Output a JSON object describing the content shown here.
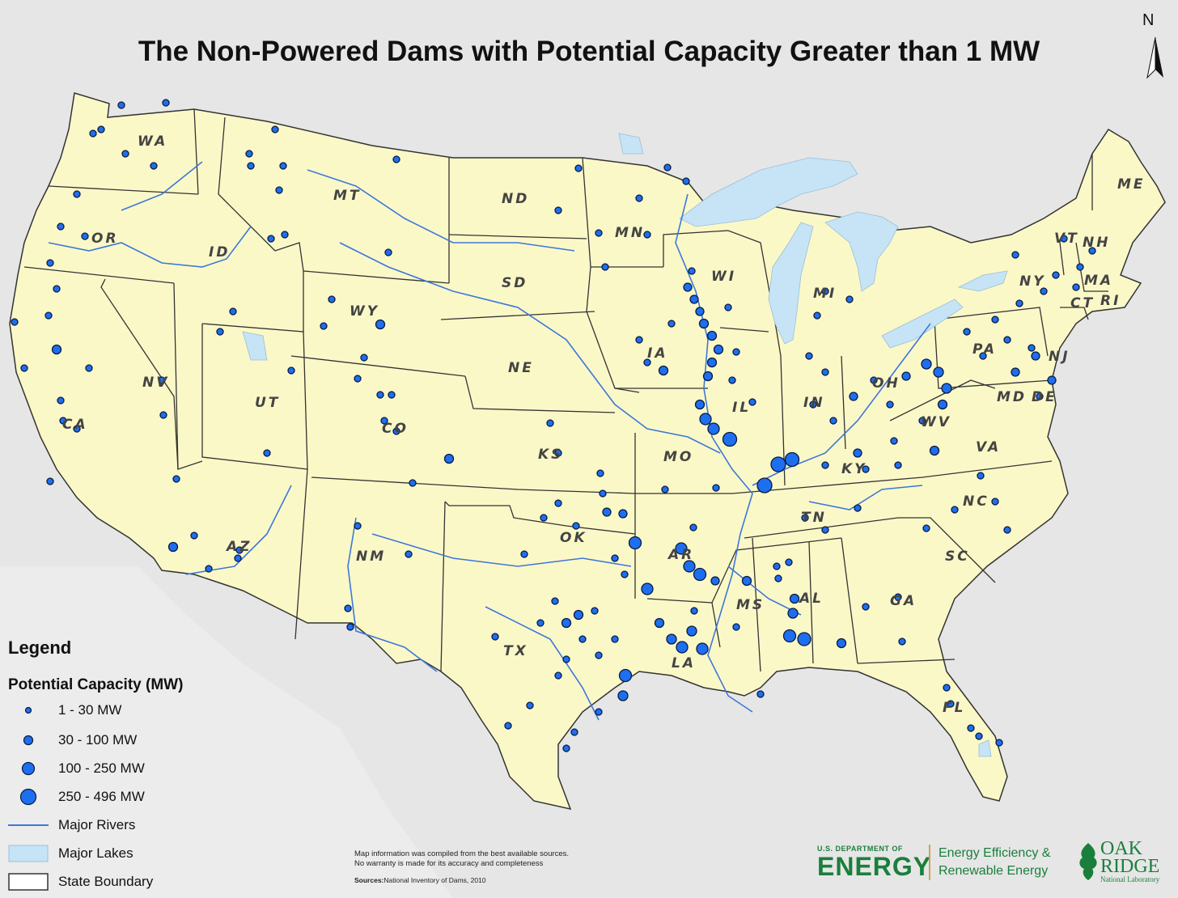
{
  "title": "The Non-Powered Dams with Potential Capacity Greater than 1 MW",
  "north_label": "N",
  "legend": {
    "title": "Legend",
    "subtitle": "Potential Capacity (MW)",
    "classes": [
      {
        "label": "1 - 30 MW"
      },
      {
        "label": "30 - 100 MW"
      },
      {
        "label": "100 - 250 MW"
      },
      {
        "label": "250 - 496 MW"
      }
    ],
    "rivers_label": "Major Rivers",
    "lakes_label": "Major Lakes",
    "boundary_label": "State Boundary"
  },
  "colors": {
    "land": "#fbf8c8",
    "outside": "#e6e6e6",
    "water": "#c6e4f6",
    "river": "#3c78d8",
    "dam": "#1e6ff0",
    "boundary": "#333333"
  },
  "states": [
    "WA",
    "OR",
    "CA",
    "ID",
    "NV",
    "MT",
    "WY",
    "UT",
    "AZ",
    "CO",
    "NM",
    "ND",
    "SD",
    "NE",
    "KS",
    "OK",
    "TX",
    "MN",
    "IA",
    "MO",
    "AR",
    "LA",
    "WI",
    "IL",
    "MS",
    "MI",
    "IN",
    "KY",
    "TN",
    "AL",
    "OH",
    "WV",
    "GA",
    "FL",
    "SC",
    "NC",
    "VA",
    "PA",
    "NY",
    "VT",
    "NH",
    "ME",
    "MA",
    "CT",
    "RI",
    "NJ",
    "MD",
    "DE"
  ],
  "note": {
    "line1": "Map information was compiled from the best available sources.",
    "line2": "No warranty is made for its accuracy and completeness",
    "source_label": "Sources:",
    "source_text": "National Inventory of Dams, 2010"
  },
  "logos": {
    "doe_small": "U.S. DEPARTMENT OF",
    "doe_big": "ENERGY",
    "eere_line1": "Energy Efficiency &",
    "eere_line2": "Renewable Energy",
    "ornl_line1": "OAK",
    "ornl_line2": "RIDGE",
    "ornl_sub": "National Laboratory"
  }
}
